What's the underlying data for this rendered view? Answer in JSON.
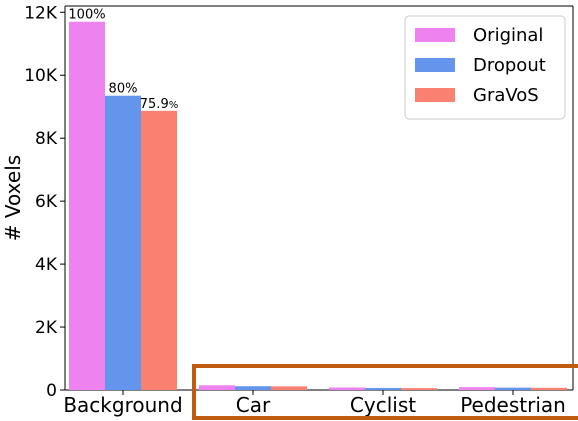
{
  "chart_data": {
    "type": "bar",
    "title": "",
    "xlabel": "",
    "ylabel": "# Voxels",
    "ylim": [
      0,
      12200
    ],
    "yticks": [
      {
        "value": 0,
        "label": "0"
      },
      {
        "value": 2000,
        "label": "2K"
      },
      {
        "value": 4000,
        "label": "4K"
      },
      {
        "value": 6000,
        "label": "6K"
      },
      {
        "value": 8000,
        "label": "8K"
      },
      {
        "value": 10000,
        "label": "10K"
      },
      {
        "value": 12000,
        "label": "12K"
      }
    ],
    "categories": [
      "Background",
      "Car",
      "Cyclist",
      "Pedestrian"
    ],
    "series": [
      {
        "name": "Original",
        "color": "#EE82EE",
        "values": [
          11700,
          150,
          80,
          90
        ]
      },
      {
        "name": "Dropout",
        "color": "#6495ED",
        "values": [
          9350,
          120,
          65,
          75
        ]
      },
      {
        "name": "GraVoS",
        "color": "#FA8072",
        "values": [
          8870,
          115,
          60,
          70
        ]
      }
    ],
    "data_labels": [
      {
        "series": 0,
        "category": 0,
        "text": "100%",
        "suffix": ""
      },
      {
        "series": 1,
        "category": 0,
        "text": "80%",
        "suffix": ""
      },
      {
        "series": 2,
        "category": 0,
        "text": "75.9",
        "suffix": "%"
      }
    ],
    "legend_position": "top-right",
    "grid": false,
    "highlight_box": {
      "categories": [
        "Car",
        "Cyclist",
        "Pedestrian"
      ],
      "color": "#C05A10"
    }
  }
}
